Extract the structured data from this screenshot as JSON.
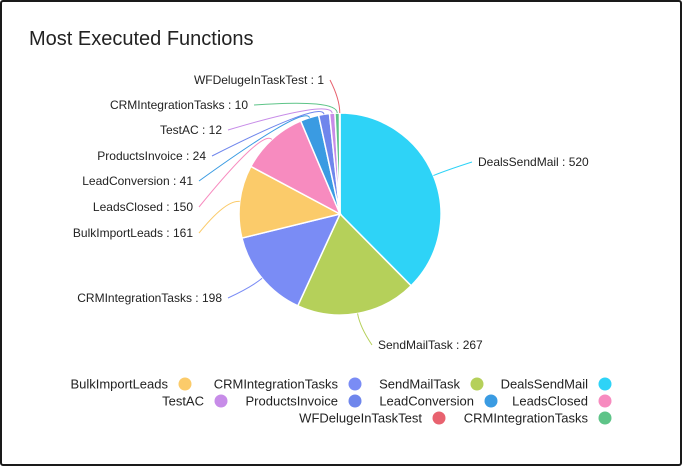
{
  "title": "Most Executed Functions",
  "chart_data": {
    "type": "pie",
    "title": "Most Executed Functions",
    "legend_position": "bottom",
    "slices": [
      {
        "label": "DealsSendMail",
        "value": 520,
        "color": "#2ed3f7"
      },
      {
        "label": "SendMailTask",
        "value": 267,
        "color": "#b5d05a"
      },
      {
        "label": "CRMIntegrationTasks",
        "value": 198,
        "color": "#7a8cf5"
      },
      {
        "label": "BulkImportLeads",
        "value": 161,
        "color": "#fbcb6a"
      },
      {
        "label": "LeadsClosed",
        "value": 150,
        "color": "#f78bbf"
      },
      {
        "label": "LeadConversion",
        "value": 41,
        "color": "#3a9be2"
      },
      {
        "label": "ProductsInvoice",
        "value": 24,
        "color": "#6f86ec"
      },
      {
        "label": "TestAC",
        "value": 12,
        "color": "#c78ce8"
      },
      {
        "label": "CRMIntegrationTasks",
        "value": 10,
        "color": "#5ec488"
      },
      {
        "label": "WFDelugeInTaskTest",
        "value": 1,
        "color": "#e8626f"
      }
    ],
    "legend": [
      {
        "label": "BulkImportLeads",
        "color": "#fbcb6a"
      },
      {
        "label": "CRMIntegrationTasks",
        "color": "#7a8cf5"
      },
      {
        "label": "SendMailTask",
        "color": "#b5d05a"
      },
      {
        "label": "DealsSendMail",
        "color": "#2ed3f7"
      },
      {
        "label": "TestAC",
        "color": "#c78ce8"
      },
      {
        "label": "ProductsInvoice",
        "color": "#6f86ec"
      },
      {
        "label": "LeadConversion",
        "color": "#3a9be2"
      },
      {
        "label": "LeadsClosed",
        "color": "#f78bbf"
      },
      {
        "label": "WFDelugeInTaskTest",
        "color": "#e8626f"
      },
      {
        "label": "CRMIntegrationTasks",
        "color": "#5ec488"
      }
    ]
  }
}
